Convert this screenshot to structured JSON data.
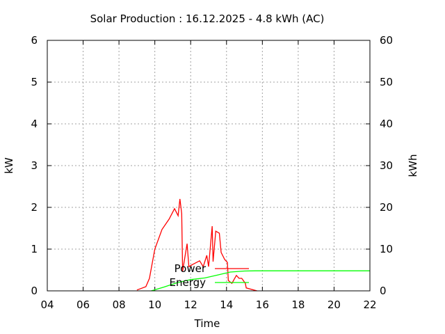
{
  "chart_data": {
    "type": "line",
    "title": "Solar Production : 16.12.2025 - 4.8 kWh (AC)",
    "xlabel": "Time",
    "ylabel": "kW",
    "y2label": "kWh",
    "xlim": [
      4,
      22
    ],
    "ylim": [
      0,
      6
    ],
    "y2lim": [
      0,
      60
    ],
    "xticks": [
      "04",
      "06",
      "08",
      "10",
      "12",
      "14",
      "16",
      "18",
      "20",
      "22"
    ],
    "yticks": [
      "0",
      "1",
      "2",
      "3",
      "4",
      "5",
      "6"
    ],
    "y2ticks": [
      "0",
      "10",
      "20",
      "30",
      "40",
      "50",
      "60"
    ],
    "grid": true,
    "legend_position": "center",
    "series": [
      {
        "name": "Power",
        "axis": "y",
        "color": "#ff0000",
        "x": [
          9.0,
          9.5,
          9.7,
          10.0,
          10.4,
          10.8,
          11.1,
          11.3,
          11.4,
          11.5,
          11.55,
          11.8,
          11.9,
          12.1,
          12.5,
          12.7,
          12.9,
          13.0,
          13.2,
          13.25,
          13.4,
          13.6,
          13.7,
          13.9,
          14.05,
          14.1,
          14.3,
          14.55,
          14.7,
          14.85,
          15.05,
          15.1,
          15.7
        ],
        "y": [
          0.02,
          0.1,
          0.3,
          1.0,
          1.47,
          1.72,
          1.97,
          1.8,
          2.2,
          1.85,
          0.47,
          1.13,
          0.58,
          0.63,
          0.72,
          0.58,
          0.85,
          0.58,
          1.55,
          0.7,
          1.43,
          1.38,
          0.92,
          0.75,
          0.68,
          0.25,
          0.18,
          0.37,
          0.3,
          0.3,
          0.18,
          0.07,
          0
        ]
      },
      {
        "name": "Energy",
        "axis": "y2",
        "color": "#00ff00",
        "x": [
          9.8,
          10.5,
          11.2,
          12.0,
          12.8,
          13.5,
          14.2,
          15.0,
          15.6,
          22.0
        ],
        "y": [
          0,
          0.9,
          1.9,
          2.7,
          3.1,
          3.8,
          4.5,
          4.75,
          4.8,
          4.8
        ]
      }
    ]
  }
}
